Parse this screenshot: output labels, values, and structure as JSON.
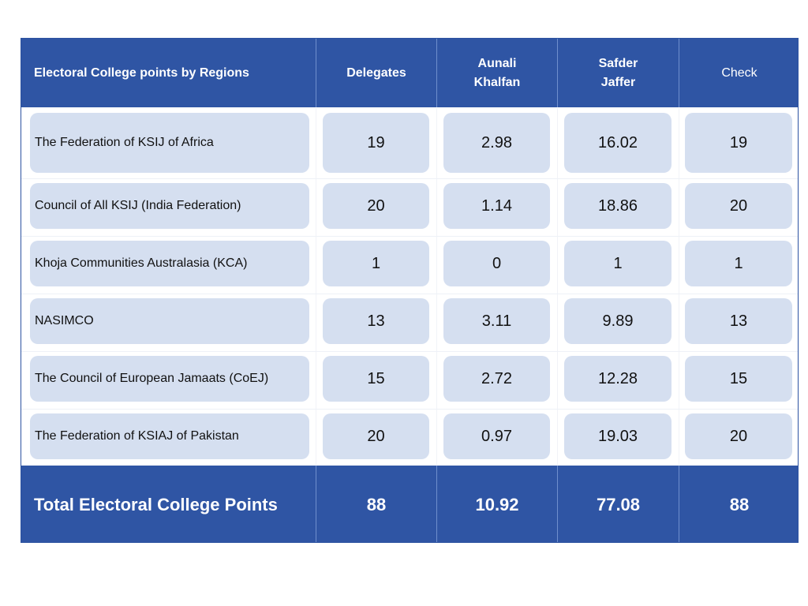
{
  "chart_data": {
    "type": "table",
    "columns": [
      "Electoral College points by Regions",
      "Delegates",
      "Aunali\nKhalfan",
      "Safder\nJaffer",
      "Check"
    ],
    "rows": [
      {
        "region": "The Federation of KSIJ of Africa",
        "values": [
          "19",
          "2.98",
          "16.02",
          "19"
        ]
      },
      {
        "region": "Council of All KSIJ (India Federation)",
        "values": [
          "20",
          "1.14",
          "18.86",
          "20"
        ]
      },
      {
        "region": "Khoja Communities Australasia (KCA)",
        "values": [
          "1",
          "0",
          "1",
          "1"
        ]
      },
      {
        "region": "NASIMCO",
        "values": [
          "13",
          "3.11",
          "9.89",
          "13"
        ]
      },
      {
        "region": "The Council of European Jamaats (CoEJ)",
        "values": [
          "15",
          "2.72",
          "12.28",
          "15"
        ]
      },
      {
        "region": "The Federation of KSIAJ of Pakistan",
        "values": [
          "20",
          "0.97",
          "19.03",
          "20"
        ]
      }
    ],
    "total": {
      "label": "Total Electoral College Points",
      "values": [
        "88",
        "10.92",
        "77.08",
        "88"
      ]
    }
  },
  "colors": {
    "header_bg": "#2f55a4",
    "cell_bg": "#d5dff0",
    "text": "#111111",
    "header_text": "#ffffff"
  }
}
